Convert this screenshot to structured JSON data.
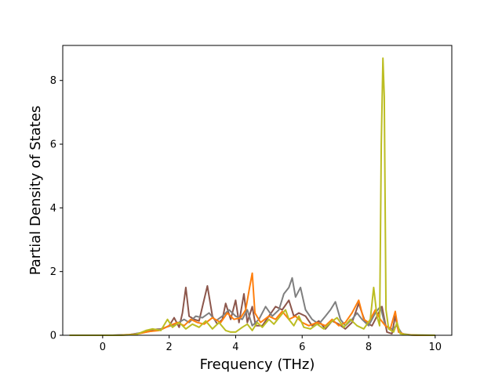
{
  "chart_data": {
    "type": "line",
    "title": "",
    "xlabel": "Frequency (THz)",
    "ylabel": "Partial Density of States",
    "xlim": [
      -1.2,
      10.5
    ],
    "ylim": [
      0,
      9.1
    ],
    "xticks": [
      0,
      2,
      4,
      6,
      8,
      10
    ],
    "yticks": [
      0,
      2,
      4,
      6,
      8
    ],
    "grid": false,
    "legend": "none",
    "series": [
      {
        "color": "#8c564b",
        "points": [
          [
            -1.0,
            0
          ],
          [
            0.3,
            0
          ],
          [
            0.8,
            0.02
          ],
          [
            1.2,
            0.08
          ],
          [
            1.5,
            0.18
          ],
          [
            1.8,
            0.2
          ],
          [
            2.0,
            0.3
          ],
          [
            2.15,
            0.55
          ],
          [
            2.3,
            0.25
          ],
          [
            2.4,
            0.7
          ],
          [
            2.5,
            1.5
          ],
          [
            2.6,
            0.6
          ],
          [
            2.75,
            0.5
          ],
          [
            2.9,
            0.45
          ],
          [
            3.0,
            0.9
          ],
          [
            3.15,
            1.55
          ],
          [
            3.3,
            0.6
          ],
          [
            3.45,
            0.35
          ],
          [
            3.6,
            0.5
          ],
          [
            3.7,
            1.0
          ],
          [
            3.85,
            0.5
          ],
          [
            4.0,
            1.1
          ],
          [
            4.1,
            0.4
          ],
          [
            4.25,
            1.3
          ],
          [
            4.35,
            0.4
          ],
          [
            4.5,
            0.9
          ],
          [
            4.6,
            0.3
          ],
          [
            4.8,
            0.3
          ],
          [
            5.0,
            0.6
          ],
          [
            5.2,
            0.9
          ],
          [
            5.4,
            0.8
          ],
          [
            5.6,
            1.1
          ],
          [
            5.75,
            0.6
          ],
          [
            5.9,
            0.7
          ],
          [
            6.1,
            0.6
          ],
          [
            6.3,
            0.3
          ],
          [
            6.5,
            0.45
          ],
          [
            6.7,
            0.2
          ],
          [
            6.9,
            0.45
          ],
          [
            7.1,
            0.35
          ],
          [
            7.3,
            0.2
          ],
          [
            7.5,
            0.4
          ],
          [
            7.7,
            1.0
          ],
          [
            7.9,
            0.4
          ],
          [
            8.1,
            0.3
          ],
          [
            8.25,
            0.6
          ],
          [
            8.4,
            0.9
          ],
          [
            8.55,
            0.1
          ],
          [
            8.7,
            0.05
          ],
          [
            8.8,
            0.6
          ],
          [
            8.9,
            0.1
          ],
          [
            9.1,
            0.02
          ],
          [
            9.5,
            0
          ],
          [
            10.0,
            0
          ]
        ]
      },
      {
        "color": "#7f7f7f",
        "points": [
          [
            -1.0,
            0
          ],
          [
            0.3,
            0
          ],
          [
            0.8,
            0.02
          ],
          [
            1.3,
            0.1
          ],
          [
            1.6,
            0.15
          ],
          [
            1.9,
            0.25
          ],
          [
            2.2,
            0.35
          ],
          [
            2.45,
            0.5
          ],
          [
            2.6,
            0.4
          ],
          [
            2.8,
            0.6
          ],
          [
            3.0,
            0.55
          ],
          [
            3.2,
            0.7
          ],
          [
            3.4,
            0.45
          ],
          [
            3.6,
            0.6
          ],
          [
            3.8,
            0.8
          ],
          [
            4.0,
            0.6
          ],
          [
            4.2,
            0.5
          ],
          [
            4.35,
            0.8
          ],
          [
            4.5,
            0.3
          ],
          [
            4.7,
            0.5
          ],
          [
            4.9,
            0.9
          ],
          [
            5.1,
            0.6
          ],
          [
            5.3,
            0.8
          ],
          [
            5.45,
            1.3
          ],
          [
            5.6,
            1.5
          ],
          [
            5.7,
            1.8
          ],
          [
            5.8,
            1.2
          ],
          [
            5.95,
            1.5
          ],
          [
            6.1,
            0.8
          ],
          [
            6.3,
            0.5
          ],
          [
            6.5,
            0.35
          ],
          [
            6.7,
            0.6
          ],
          [
            6.85,
            0.8
          ],
          [
            7.0,
            1.05
          ],
          [
            7.15,
            0.5
          ],
          [
            7.3,
            0.3
          ],
          [
            7.5,
            0.5
          ],
          [
            7.65,
            0.7
          ],
          [
            7.8,
            0.5
          ],
          [
            8.0,
            0.3
          ],
          [
            8.2,
            0.7
          ],
          [
            8.35,
            0.9
          ],
          [
            8.5,
            0.3
          ],
          [
            8.7,
            0.2
          ],
          [
            8.85,
            0.3
          ],
          [
            9.0,
            0.05
          ],
          [
            9.3,
            0.01
          ],
          [
            10.0,
            0
          ]
        ]
      },
      {
        "color": "#ff7f0e",
        "points": [
          [
            -1.0,
            0
          ],
          [
            0.5,
            0
          ],
          [
            1.0,
            0.03
          ],
          [
            1.4,
            0.12
          ],
          [
            1.7,
            0.15
          ],
          [
            2.0,
            0.3
          ],
          [
            2.25,
            0.4
          ],
          [
            2.45,
            0.3
          ],
          [
            2.65,
            0.5
          ],
          [
            2.85,
            0.4
          ],
          [
            3.05,
            0.35
          ],
          [
            3.3,
            0.55
          ],
          [
            3.55,
            0.4
          ],
          [
            3.75,
            0.7
          ],
          [
            3.95,
            0.5
          ],
          [
            4.15,
            0.55
          ],
          [
            4.3,
            0.8
          ],
          [
            4.42,
            1.5
          ],
          [
            4.5,
            1.95
          ],
          [
            4.58,
            0.7
          ],
          [
            4.75,
            0.4
          ],
          [
            5.0,
            0.6
          ],
          [
            5.2,
            0.5
          ],
          [
            5.4,
            0.75
          ],
          [
            5.6,
            0.5
          ],
          [
            5.8,
            0.6
          ],
          [
            6.0,
            0.4
          ],
          [
            6.2,
            0.3
          ],
          [
            6.45,
            0.4
          ],
          [
            6.7,
            0.3
          ],
          [
            6.9,
            0.5
          ],
          [
            7.1,
            0.3
          ],
          [
            7.3,
            0.4
          ],
          [
            7.5,
            0.7
          ],
          [
            7.7,
            1.1
          ],
          [
            7.85,
            0.5
          ],
          [
            8.0,
            0.4
          ],
          [
            8.2,
            0.8
          ],
          [
            8.35,
            0.5
          ],
          [
            8.5,
            0.3
          ],
          [
            8.65,
            0.2
          ],
          [
            8.8,
            0.75
          ],
          [
            8.9,
            0.1
          ],
          [
            9.1,
            0.02
          ],
          [
            9.5,
            0
          ],
          [
            10.0,
            0
          ]
        ]
      },
      {
        "color": "#bcbd22",
        "points": [
          [
            -1.0,
            0
          ],
          [
            0.5,
            0
          ],
          [
            1.0,
            0.02
          ],
          [
            1.3,
            0.15
          ],
          [
            1.5,
            0.2
          ],
          [
            1.75,
            0.15
          ],
          [
            1.95,
            0.5
          ],
          [
            2.1,
            0.25
          ],
          [
            2.3,
            0.4
          ],
          [
            2.5,
            0.2
          ],
          [
            2.7,
            0.35
          ],
          [
            2.9,
            0.25
          ],
          [
            3.1,
            0.45
          ],
          [
            3.3,
            0.2
          ],
          [
            3.5,
            0.4
          ],
          [
            3.7,
            0.15
          ],
          [
            3.85,
            0.1
          ],
          [
            4.0,
            0.1
          ],
          [
            4.2,
            0.25
          ],
          [
            4.35,
            0.35
          ],
          [
            4.5,
            0.15
          ],
          [
            4.65,
            0.4
          ],
          [
            4.8,
            0.25
          ],
          [
            5.0,
            0.5
          ],
          [
            5.15,
            0.35
          ],
          [
            5.3,
            0.55
          ],
          [
            5.5,
            0.8
          ],
          [
            5.6,
            0.5
          ],
          [
            5.75,
            0.3
          ],
          [
            5.9,
            0.6
          ],
          [
            6.05,
            0.25
          ],
          [
            6.25,
            0.2
          ],
          [
            6.45,
            0.35
          ],
          [
            6.65,
            0.2
          ],
          [
            6.85,
            0.4
          ],
          [
            7.05,
            0.55
          ],
          [
            7.25,
            0.25
          ],
          [
            7.45,
            0.5
          ],
          [
            7.65,
            0.3
          ],
          [
            7.85,
            0.2
          ],
          [
            8.05,
            0.5
          ],
          [
            8.15,
            1.5
          ],
          [
            8.25,
            0.6
          ],
          [
            8.33,
            0.3
          ],
          [
            8.38,
            6.0
          ],
          [
            8.43,
            8.7
          ],
          [
            8.47,
            7.5
          ],
          [
            8.52,
            0.8
          ],
          [
            8.6,
            0.2
          ],
          [
            8.75,
            0.1
          ],
          [
            8.85,
            0.4
          ],
          [
            8.95,
            0.05
          ],
          [
            9.2,
            0.01
          ],
          [
            10.0,
            0
          ]
        ]
      }
    ]
  }
}
